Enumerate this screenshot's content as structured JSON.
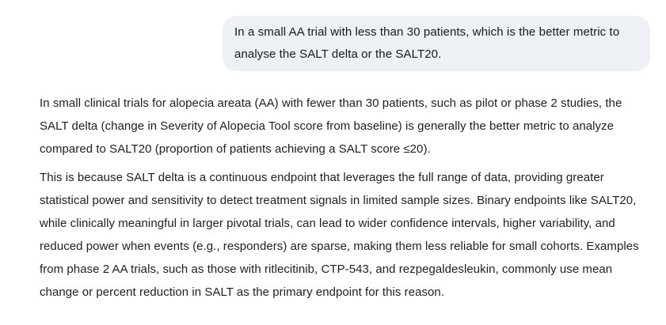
{
  "chat": {
    "user_message": {
      "text": "In a small AA trial with less than 30 patients, which is the better metric to analyse the SALT delta or the SALT20."
    },
    "assistant_response": {
      "paragraphs": [
        "In small clinical trials for alopecia areata (AA) with fewer than 30 patients, such as pilot or phase 2 studies, the SALT delta (change in Severity of Alopecia Tool score from baseline) is generally the better metric to analyze compared to SALT20 (proportion of patients achieving a SALT score ≤20).",
        "This is because SALT delta is a continuous endpoint that leverages the full range of data, providing greater statistical power and sensitivity to detect treatment signals in limited sample sizes. Binary endpoints like SALT20, while clinically meaningful in larger pivotal trials, can lead to wider confidence intervals, higher variability, and reduced power when events (e.g., responders) are sparse, making them less reliable for small cohorts. Examples from phase 2 AA trials, such as those with ritlecitinib, CTP-543, and rezpegaldesleukin, commonly use mean change or percent reduction in SALT as the primary endpoint for this reason."
      ]
    },
    "colors": {
      "page_bg": "#ffffff",
      "user_bubble_bg": "#edf0f4",
      "text": "#1b1e23"
    }
  }
}
